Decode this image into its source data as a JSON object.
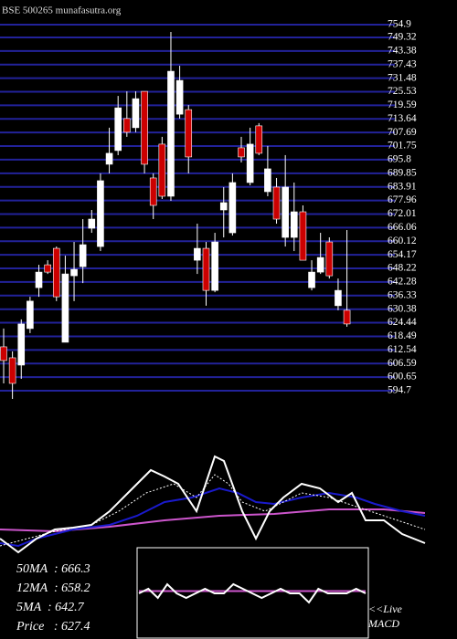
{
  "header": "BSE 500265 munafasutra.org",
  "chart_data": [
    {
      "type": "candlestick",
      "open": [
        613.9,
        609.1,
        605.9,
        621.9,
        639.8,
        649.8,
        657.0,
        615.9,
        645.0,
        649.0,
        665.8,
        657.8,
        693.8,
        699.8,
        713.8,
        709.8,
        725.7,
        687.8,
        702.6,
        679.8,
        715.7,
        717.7,
        651.8,
        657.0,
        638.6,
        673.8,
        663.8,
        701.0,
        685.8,
        710.6,
        681.8,
        683.8,
        661.8,
        661.8,
        673.0,
        639.8,
        646.6,
        659.8,
        631.9,
        629.9
      ],
      "high": [
        621.9,
        611.9,
        625.9,
        635.8,
        649.8,
        651.8,
        657.8,
        653.8,
        659.8,
        669.8,
        673.8,
        689.8,
        709.8,
        723.7,
        725.7,
        725.7,
        725.7,
        689.8,
        705.8,
        751.7,
        736.9,
        719.7,
        667.8,
        659.8,
        663.8,
        683.8,
        689.8,
        705.8,
        709.8,
        711.8,
        701.8,
        687.8,
        697.8,
        685.8,
        675.8,
        651.8,
        663.8,
        661.8,
        643.8,
        665.0
      ],
      "low": [
        597.9,
        591.1,
        599.9,
        619.9,
        635.8,
        645.8,
        633.9,
        615.9,
        633.9,
        641.8,
        663.8,
        655.8,
        689.8,
        697.8,
        705.8,
        707.8,
        689.8,
        669.8,
        678.6,
        677.8,
        713.8,
        689.8,
        645.8,
        631.9,
        637.8,
        661.8,
        662.6,
        694.6,
        684.6,
        697.8,
        679.8,
        667.8,
        657.8,
        655.8,
        651.8,
        638.6,
        645.8,
        643.8,
        629.9,
        622.7
      ],
      "close": [
        607.9,
        597.9,
        623.9,
        633.9,
        646.6,
        646.6,
        635.8,
        645.8,
        647.8,
        658.6,
        669.8,
        686.6,
        698.6,
        718.5,
        707.8,
        722.5,
        693.8,
        675.8,
        679.8,
        734.5,
        730.5,
        697.0,
        657.0,
        638.6,
        659.8,
        677.0,
        685.8,
        697.0,
        702.6,
        698.6,
        691.8,
        669.8,
        683.8,
        673.0,
        651.8,
        646.6,
        653.0,
        645.0,
        638.6,
        623.9
      ],
      "up_color": "#ffffff",
      "down_color": "#cc0000",
      "ylim": [
        594.7,
        754.9
      ],
      "yticks": [
        754.9,
        749.32,
        743.38,
        737.43,
        731.48,
        725.53,
        719.59,
        713.64,
        707.69,
        701.75,
        695.8,
        689.85,
        683.91,
        677.96,
        672.01,
        666.06,
        660.12,
        654.17,
        648.22,
        642.28,
        636.33,
        630.38,
        624.44,
        618.49,
        612.54,
        606.59,
        600.65,
        594.7
      ],
      "grid": true,
      "grid_color": "#22229a"
    },
    {
      "type": "line",
      "xlim": [
        0,
        47
      ],
      "ylim": [
        -10,
        100
      ],
      "series": [
        {
          "color": "#cc55cc",
          "x": [
            0,
            6,
            12,
            18,
            24,
            30,
            36,
            42,
            46.5
          ],
          "values": [
            18.2,
            16.4,
            20.9,
            27.3,
            31.8,
            33.6,
            38.2,
            38.2,
            34.5
          ]
        },
        {
          "color": "#1a1acc",
          "x": [
            0,
            2,
            4,
            8,
            12,
            15,
            18,
            21,
            24,
            26,
            28,
            30,
            33,
            36,
            39,
            41,
            44,
            46.5
          ],
          "values": [
            4.5,
            1.8,
            9.1,
            18.2,
            22.7,
            31.8,
            45.5,
            50,
            59.1,
            54.5,
            45.5,
            43.6,
            50,
            54.5,
            50,
            43.6,
            36.4,
            31.8
          ]
        },
        {
          "color": "#ffffff",
          "dash": true,
          "x": [
            0,
            3,
            6,
            10,
            13,
            16,
            19,
            21.5,
            23.5,
            25,
            26.5,
            29,
            31,
            33,
            36,
            39,
            42,
            45,
            46.5
          ],
          "values": [
            1.8,
            9.1,
            16.4,
            22.7,
            36.4,
            54.5,
            63.6,
            50,
            72.7,
            63.6,
            45.5,
            36.4,
            45.5,
            54.5,
            50,
            40.9,
            31.8,
            22.7,
            18.2
          ]
        },
        {
          "color": "#ffffff",
          "x": [
            0,
            2,
            4,
            6,
            8,
            10,
            12,
            14,
            16.5,
            18,
            19.5,
            21.5,
            23.5,
            24.5,
            26.5,
            28,
            29.5,
            31,
            33,
            35,
            37,
            38.5,
            40,
            42,
            44,
            46.5
          ],
          "values": [
            9.1,
            -4.5,
            9.1,
            18.2,
            20,
            22.7,
            36.4,
            54.5,
            77.3,
            70.9,
            63.6,
            36.4,
            90.9,
            86.4,
            36.4,
            9.1,
            36.4,
            50,
            63.6,
            59.1,
            45.5,
            54.5,
            27.3,
            27.3,
            13.6,
            4.5
          ]
        }
      ],
      "annotations": [
        "50MA  : 666.3",
        "12MA  : 658.2",
        "5MA  : 642.7",
        "Price   : 627.4"
      ]
    },
    {
      "type": "line",
      "title": "MACD",
      "xlim": [
        0,
        24
      ],
      "ylim": [
        -10,
        10
      ],
      "series": [
        {
          "color": "#cc55cc",
          "x": [
            0,
            24
          ],
          "values": [
            0.5,
            0.5
          ]
        },
        {
          "color": "#ffffff",
          "x": [
            0,
            1,
            2,
            3,
            4,
            5,
            6,
            7,
            8,
            9,
            10,
            11,
            12,
            13,
            14,
            15,
            16,
            17,
            18,
            19,
            20,
            21,
            22,
            23,
            24
          ],
          "values": [
            0,
            1,
            -1,
            2,
            0,
            -1,
            0,
            1,
            0,
            0,
            2,
            1,
            0,
            -1,
            0,
            1,
            0,
            0,
            -2,
            1,
            0,
            0,
            0,
            1,
            0
          ]
        }
      ],
      "annotations": [
        "<<Live"
      ]
    }
  ]
}
